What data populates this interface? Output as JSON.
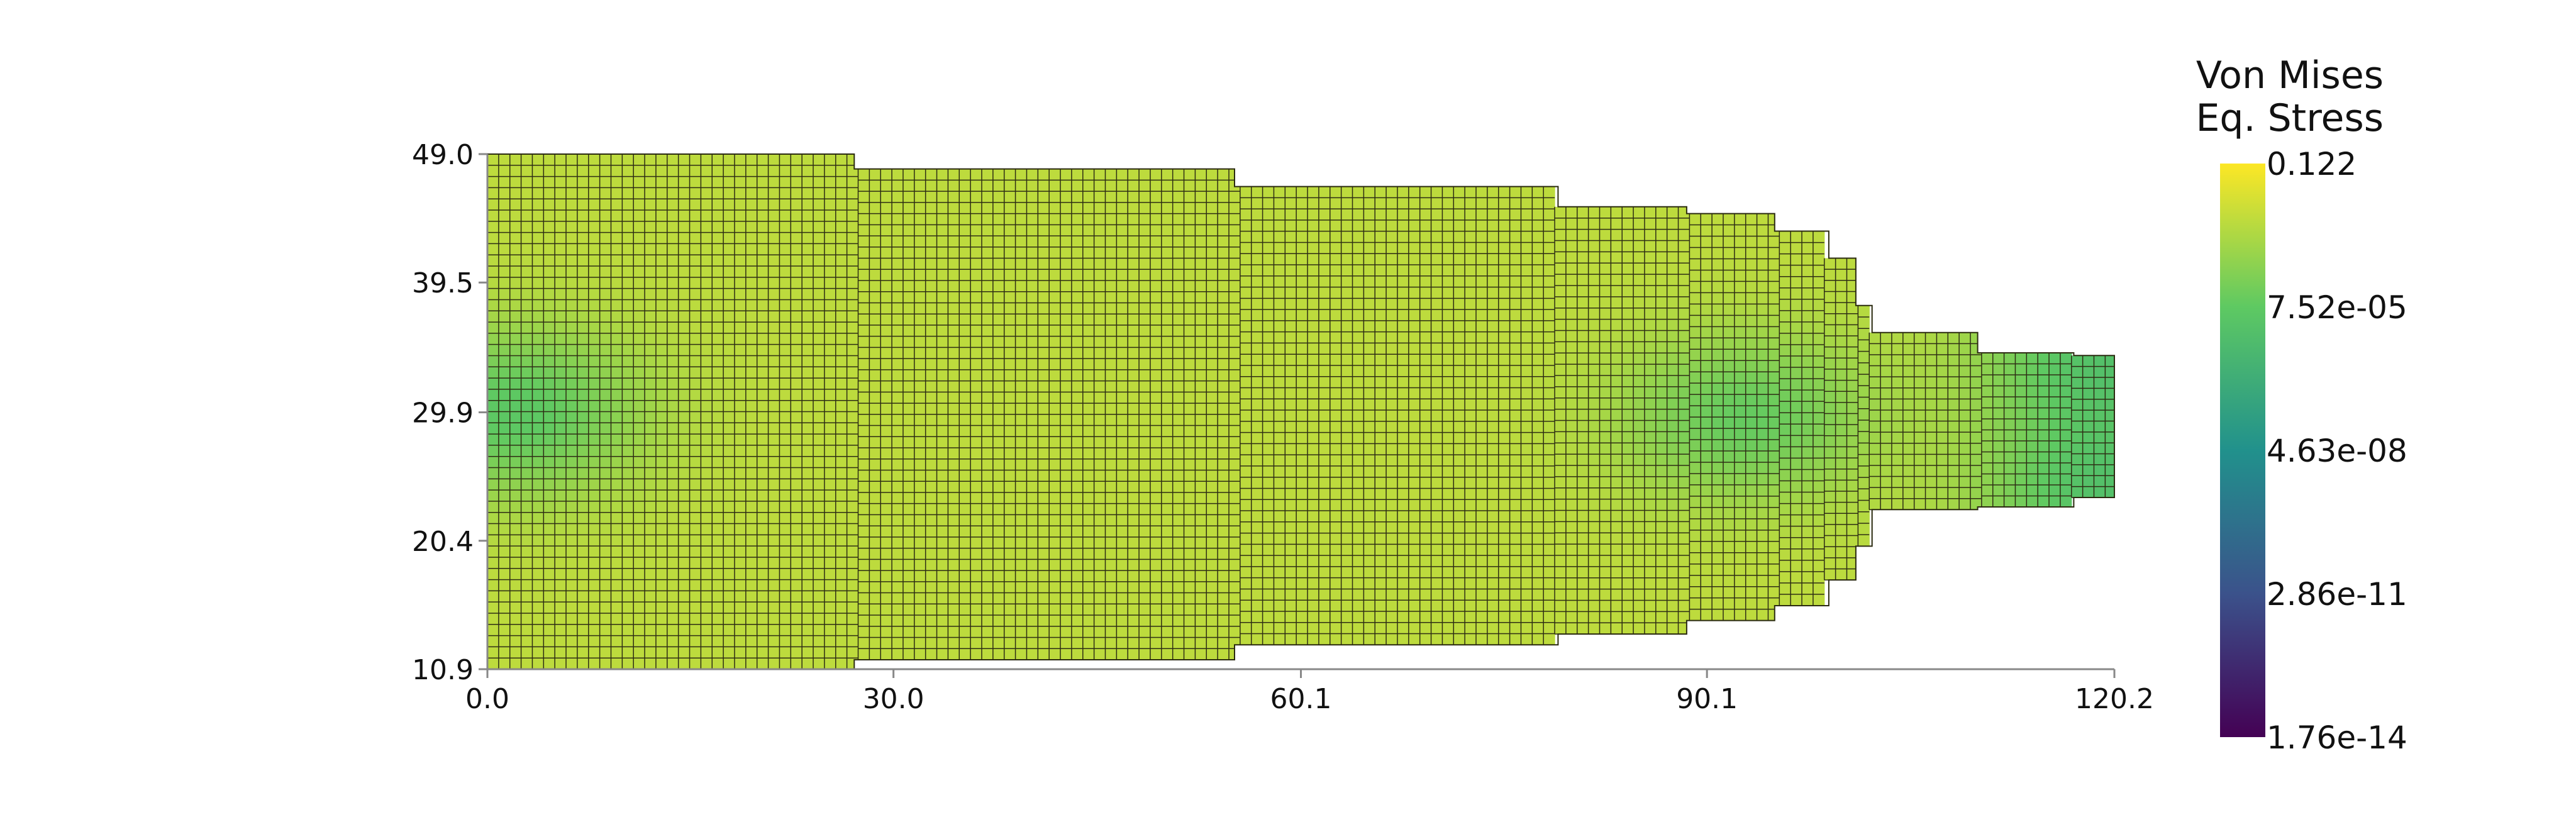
{
  "chart_data": {
    "type": "heatmap",
    "title": "",
    "xlabel": "",
    "ylabel": "",
    "xlim": [
      0.0,
      120.2
    ],
    "ylim": [
      10.9,
      49.0
    ],
    "x_ticks": [
      "0.0",
      "30.0",
      "60.1",
      "90.1",
      "120.2"
    ],
    "y_ticks": [
      "10.9",
      "20.4",
      "29.9",
      "39.5",
      "49.0"
    ],
    "colorbar": {
      "title_lines": [
        "Von Mises",
        "Eq. Stress"
      ],
      "scale": "log",
      "range": [
        1.76e-14,
        0.122
      ],
      "labels": [
        "0.122",
        "7.52e-05",
        "4.63e-08",
        "2.86e-11",
        "1.76e-14"
      ],
      "colormap": [
        "#440154",
        "#3b528b",
        "#21918c",
        "#5ec962",
        "#fde725"
      ]
    },
    "mesh": {
      "element_size": 0.83,
      "profile": [
        [
          0.0,
          10.9,
          49.0
        ],
        [
          27.1,
          11.6,
          47.9
        ],
        [
          55.2,
          12.7,
          46.6
        ],
        [
          79.1,
          13.5,
          45.1
        ],
        [
          88.6,
          14.5,
          44.6
        ],
        [
          95.1,
          15.6,
          43.3
        ],
        [
          99.1,
          17.5,
          41.3
        ],
        [
          101.1,
          20.0,
          37.8
        ],
        [
          102.3,
          22.7,
          35.8
        ],
        [
          110.1,
          22.9,
          34.3
        ],
        [
          117.2,
          23.6,
          34.1
        ],
        [
          120.2,
          23.6,
          34.1
        ]
      ],
      "field": {
        "base": 0.9,
        "low_regions": [
          {
            "x": 2.0,
            "y": 29.9,
            "value": 0.74
          },
          {
            "x": 93.0,
            "y": 29.5,
            "value": 0.76
          },
          {
            "x": 119.5,
            "y": 23.8,
            "value": 0.72
          },
          {
            "x": 119.5,
            "y": 34.0,
            "value": 0.72
          }
        ]
      }
    }
  }
}
